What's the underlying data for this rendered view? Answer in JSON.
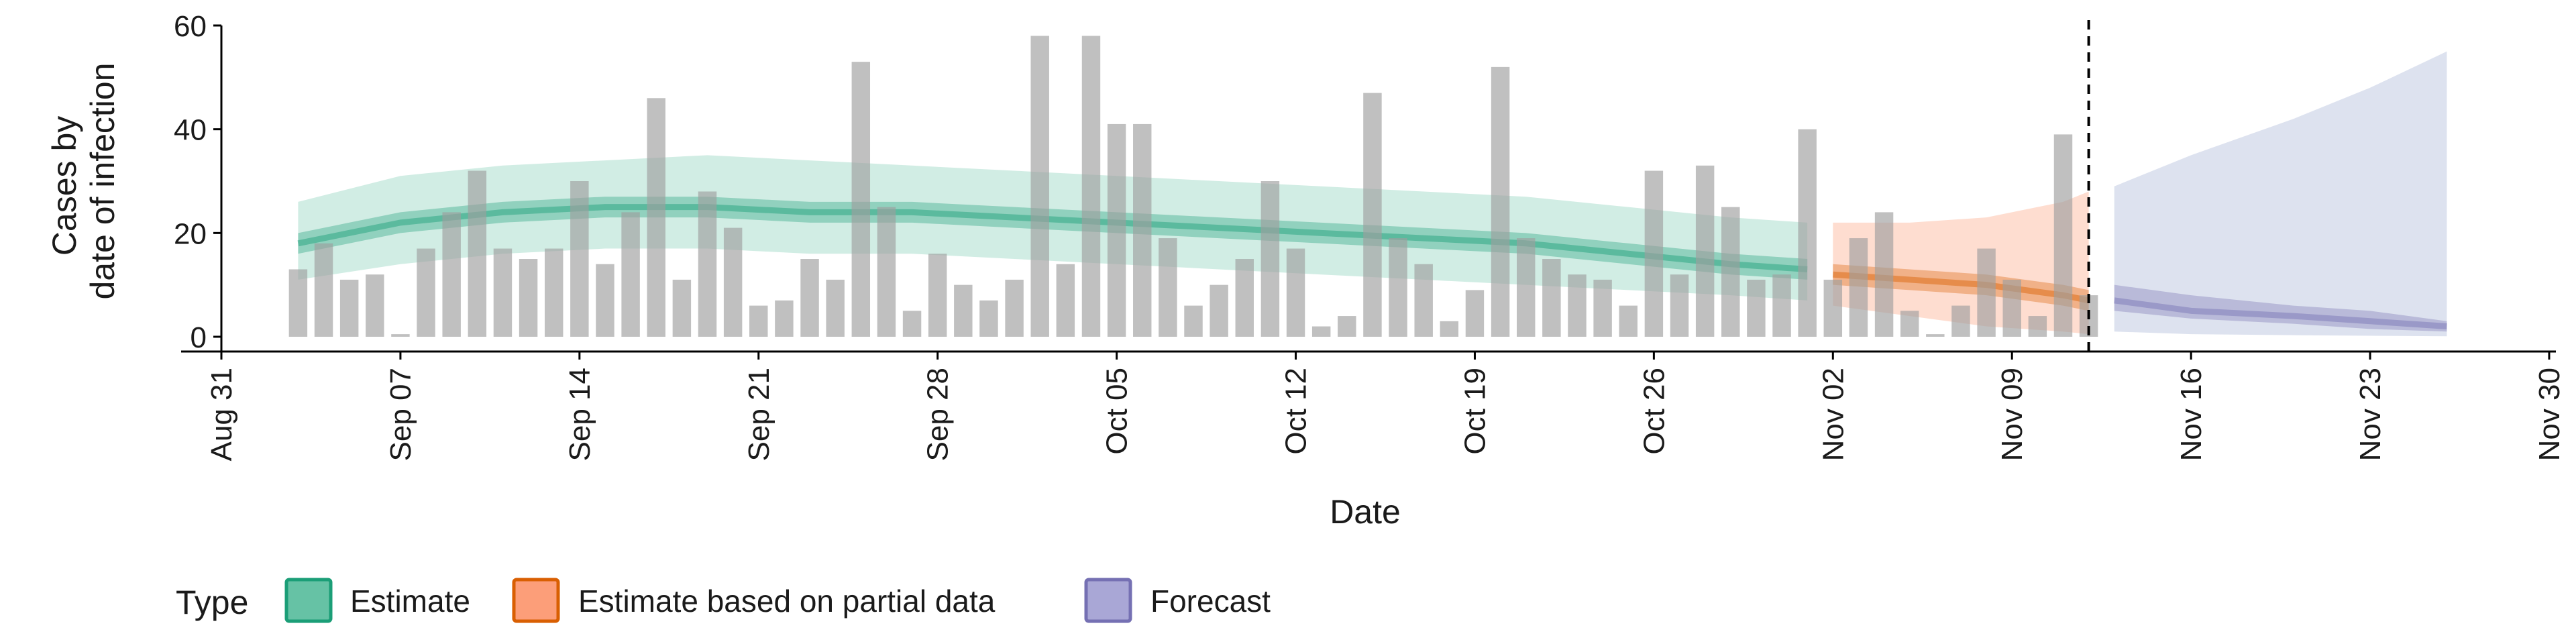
{
  "chart_data": {
    "type": "bar",
    "xlabel": "Date",
    "ylabel_lines": [
      "Cases by",
      "date of infection"
    ],
    "ylim": [
      0,
      60
    ],
    "yticks": [
      0,
      20,
      40,
      60
    ],
    "x_range": [
      "2020-08-31",
      "2020-11-30"
    ],
    "xticks": [
      {
        "date": "2020-08-31",
        "label": "Aug 31"
      },
      {
        "date": "2020-09-07",
        "label": "Sep 07"
      },
      {
        "date": "2020-09-14",
        "label": "Sep 14"
      },
      {
        "date": "2020-09-21",
        "label": "Sep 21"
      },
      {
        "date": "2020-09-28",
        "label": "Sep 28"
      },
      {
        "date": "2020-10-05",
        "label": "Oct 05"
      },
      {
        "date": "2020-10-12",
        "label": "Oct 12"
      },
      {
        "date": "2020-10-19",
        "label": "Oct 19"
      },
      {
        "date": "2020-10-26",
        "label": "Oct 26"
      },
      {
        "date": "2020-11-02",
        "label": "Nov 02"
      },
      {
        "date": "2020-11-09",
        "label": "Nov 09"
      },
      {
        "date": "2020-11-16",
        "label": "Nov 16"
      },
      {
        "date": "2020-11-23",
        "label": "Nov 23"
      },
      {
        "date": "2020-11-30",
        "label": "Nov 30"
      }
    ],
    "bars_start_date": "2020-09-03",
    "bar_values": [
      13,
      18,
      11,
      12,
      0.5,
      17,
      24,
      32,
      17,
      15,
      17,
      30,
      14,
      24,
      46,
      11,
      28,
      21,
      6,
      7,
      15,
      11,
      53,
      25,
      5,
      16,
      10,
      7,
      11,
      58,
      14,
      58,
      41,
      41,
      19,
      6,
      10,
      15,
      30,
      17,
      2,
      4,
      47,
      19,
      14,
      3,
      9,
      52,
      19,
      15,
      12,
      11,
      6,
      32,
      12,
      33,
      25,
      11,
      12,
      40,
      11,
      19,
      24,
      5,
      0.5,
      6,
      17,
      11,
      4,
      39,
      8
    ],
    "vertical_line_date": "2020-11-12",
    "grid": false,
    "legend": {
      "position": "bottom-left",
      "title": "Type",
      "items": [
        {
          "label": "Estimate",
          "color": "#1b9e77"
        },
        {
          "label": "Estimate based on partial data",
          "color": "#d95f02"
        },
        {
          "label": "Forecast",
          "color": "#7570b3"
        }
      ]
    },
    "ribbons": [
      {
        "type": "Estimate",
        "color": "#1b9e77",
        "fill": "#66c2a5",
        "dates": [
          "2020-09-03",
          "2020-09-07",
          "2020-09-11",
          "2020-09-15",
          "2020-09-19",
          "2020-09-23",
          "2020-09-27",
          "2020-10-01",
          "2020-10-05",
          "2020-10-09",
          "2020-10-13",
          "2020-10-17",
          "2020-10-21",
          "2020-10-25",
          "2020-10-29",
          "2020-11-01"
        ],
        "median": [
          18,
          22,
          24,
          25,
          25,
          24,
          24,
          23,
          22,
          21,
          20,
          19,
          18,
          16,
          14,
          13
        ],
        "lower50": [
          16,
          20,
          22,
          23,
          23,
          22,
          22,
          21,
          20,
          19,
          18,
          17,
          16,
          14,
          12,
          11
        ],
        "upper50": [
          20,
          24,
          26,
          27,
          27,
          26,
          26,
          25,
          24,
          23,
          22,
          21,
          20,
          18,
          16,
          15
        ],
        "lower90": [
          11,
          14,
          16,
          17,
          17,
          16,
          16,
          15,
          14,
          13,
          12,
          11,
          10,
          9,
          8,
          7
        ],
        "upper90": [
          26,
          31,
          33,
          34,
          35,
          34,
          33,
          32,
          31,
          30,
          29,
          28,
          27,
          25,
          23,
          22
        ]
      },
      {
        "type": "Estimate based on partial data",
        "color": "#d95f02",
        "fill": "#fc8d62",
        "dates": [
          "2020-11-02",
          "2020-11-05",
          "2020-11-08",
          "2020-11-11",
          "2020-11-12"
        ],
        "median": [
          12,
          11,
          10,
          8,
          7
        ],
        "lower50": [
          10,
          9,
          8,
          6,
          5
        ],
        "upper50": [
          14,
          13,
          12,
          10,
          9
        ],
        "lower90": [
          6,
          4,
          2,
          1,
          0.5
        ],
        "upper90": [
          22,
          22,
          23,
          26,
          28
        ]
      },
      {
        "type": "Forecast",
        "color": "#7570b3",
        "fill": "#8da0cb",
        "dates": [
          "2020-11-13",
          "2020-11-16",
          "2020-11-20",
          "2020-11-23",
          "2020-11-26"
        ],
        "median": [
          7,
          5,
          4,
          3,
          2
        ],
        "lower50": [
          5,
          3.5,
          2.5,
          1.5,
          1
        ],
        "upper50": [
          10,
          8,
          6,
          5,
          3
        ],
        "lower90": [
          1,
          0.5,
          0.3,
          0.2,
          0.1
        ],
        "upper90": [
          29,
          35,
          42,
          48,
          55
        ]
      }
    ]
  }
}
